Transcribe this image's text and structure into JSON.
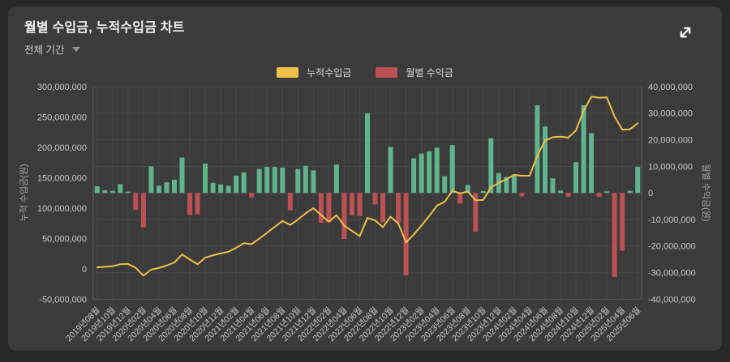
{
  "header": {
    "title": "월별 수입금, 누적수입금 차트",
    "period_selector": {
      "label": "전체 기간"
    }
  },
  "legend": {
    "items": [
      {
        "label": "누적수입금",
        "color": "#eec04a"
      },
      {
        "label": "월별 수익금",
        "color": "#bb5153"
      }
    ]
  },
  "colors": {
    "background": "#272727",
    "panel": "#3b3b3b",
    "grid": "#484848",
    "axis_line": "#5c5c5c",
    "tick_text": "#c9c9c9",
    "axis_name_text": "#a8a8a8",
    "bar_positive": "#5fb48f",
    "bar_negative": "#bb5153",
    "line": "#eec04a",
    "expand_icon": "#ffffff"
  },
  "chart_data": {
    "type": "combo",
    "title": "월별 수입금, 누적수입금 차트",
    "grid": true,
    "legend_position": "top-center",
    "x_tick_every": 2,
    "x_label_rotation": -45,
    "left_axis": {
      "name": "누적 수입금(원)",
      "min": -50000000,
      "max": 300000000,
      "step": 50000000
    },
    "right_axis": {
      "name": "월별 수익금(원)",
      "min": -40000000,
      "max": 40000000,
      "step": 10000000
    },
    "categories": [
      "2019년08월",
      "2019년09월",
      "2019년10월",
      "2019년11월",
      "2019년12월",
      "2020년01월",
      "2020년02월",
      "2020년03월",
      "2020년04월",
      "2020년05월",
      "2020년06월",
      "2020년07월",
      "2020년08월",
      "2020년09월",
      "2020년10월",
      "2020년11월",
      "2020년12월",
      "2021년01월",
      "2021년02월",
      "2021년03월",
      "2021년04월",
      "2021년05월",
      "2021년06월",
      "2021년07월",
      "2021년08월",
      "2021년09월",
      "2021년10월",
      "2021년11월",
      "2021년12월",
      "2022년01월",
      "2022년02월",
      "2022년03월",
      "2022년04월",
      "2022년05월",
      "2022년06월",
      "2022년07월",
      "2022년08월",
      "2022년09월",
      "2022년10월",
      "2022년11월",
      "2022년12월",
      "2023년01월",
      "2023년02월",
      "2023년03월",
      "2023년04월",
      "2023년05월",
      "2023년06월",
      "2023년07월",
      "2023년08월",
      "2023년09월",
      "2023년10월",
      "2023년11월",
      "2023년12월",
      "2024년01월",
      "2024년02월",
      "2024년03월",
      "2024년04월",
      "2024년05월",
      "2024년06월",
      "2024년07월",
      "2024년08월",
      "2024년09월",
      "2024년10월",
      "2024년11월",
      "2024년12월",
      "2025년01월",
      "2025년02월",
      "2025년03월",
      "2025년04월",
      "2025년05월",
      "2025년06월"
    ],
    "series": [
      {
        "name": "월별 수익금",
        "type": "bar",
        "axis": "right",
        "values": [
          2500000,
          1000000,
          800000,
          3300000,
          500000,
          -6300000,
          -13000000,
          10000000,
          2700000,
          4000000,
          5000000,
          13300000,
          -8300000,
          -8000000,
          11000000,
          3800000,
          3200000,
          2700000,
          6500000,
          7700000,
          -1700000,
          9000000,
          9800000,
          9800000,
          9500000,
          -6500000,
          9000000,
          10200000,
          8500000,
          -11300000,
          -11000000,
          10700000,
          -17300000,
          -8500000,
          -8700000,
          30000000,
          -4300000,
          -11000000,
          17300000,
          -11300000,
          -31000000,
          13000000,
          14800000,
          15700000,
          17000000,
          6300000,
          18000000,
          -4000000,
          3000000,
          -14600000,
          700000,
          20600000,
          7500000,
          6000000,
          7000000,
          -1300000,
          0,
          33000000,
          25000000,
          5500000,
          900000,
          -1500000,
          11600000,
          33000000,
          22500000,
          -1500000,
          600000,
          -31600000,
          -21700000,
          800000,
          9800000
        ]
      },
      {
        "name": "누적수입금",
        "type": "line",
        "axis": "left",
        "values": [
          2500000,
          3500000,
          4300000,
          7600000,
          8100000,
          1800000,
          -11200000,
          -1200000,
          1500000,
          5500000,
          10500000,
          23800000,
          15500000,
          7500000,
          18500000,
          22300000,
          25500000,
          28200000,
          34700000,
          42400000,
          40700000,
          49700000,
          59500000,
          69300000,
          78800000,
          72300000,
          81300000,
          91500000,
          100000000,
          88700000,
          77700000,
          88400000,
          71100000,
          62600000,
          53900000,
          83900000,
          79600000,
          68600000,
          85900000,
          74600000,
          43600000,
          56600000,
          71400000,
          87100000,
          104100000,
          110400000,
          128400000,
          124400000,
          127400000,
          112800000,
          113500000,
          134100000,
          141600000,
          147600000,
          154600000,
          153300000,
          153300000,
          186300000,
          211300000,
          216800000,
          217700000,
          216200000,
          227800000,
          260800000,
          283300000,
          281800000,
          282400000,
          250800000,
          229100000,
          229900000,
          239700000
        ]
      }
    ]
  }
}
